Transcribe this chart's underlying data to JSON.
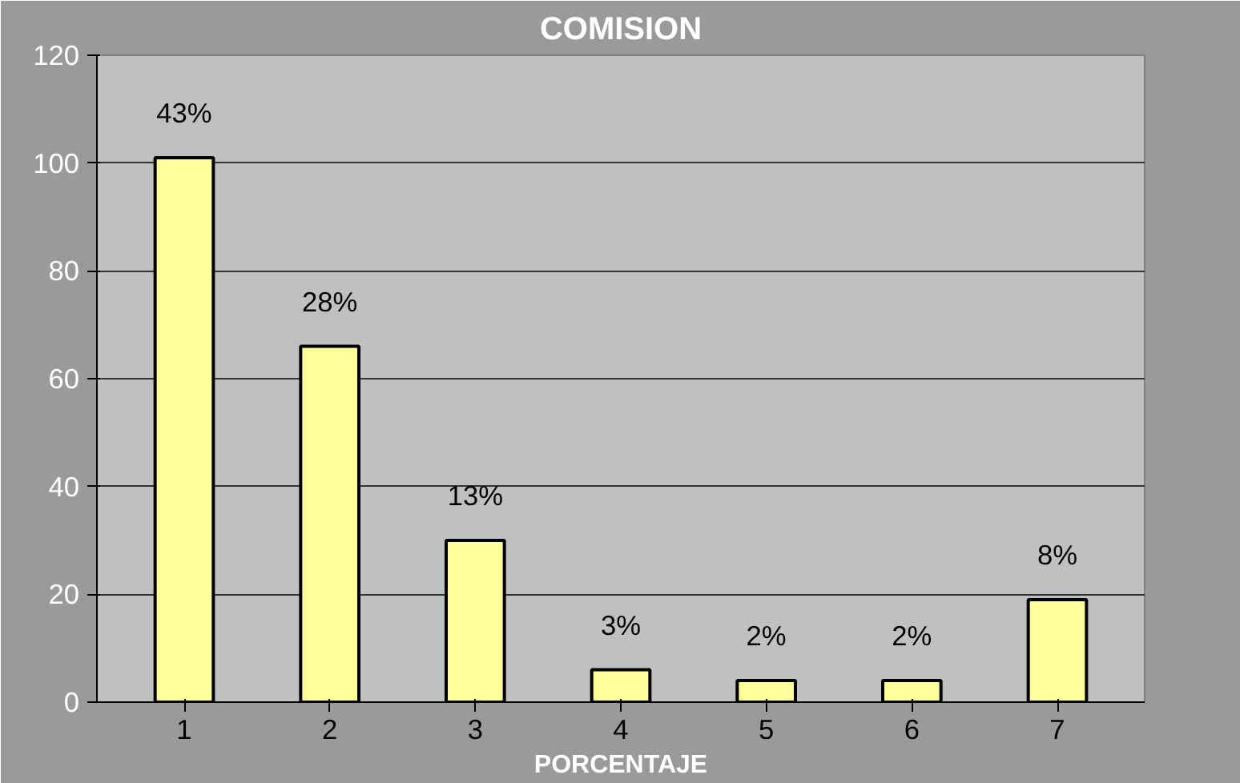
{
  "chart_data": {
    "type": "bar",
    "title": "COMISION",
    "xlabel": "PORCENTAJE",
    "categories": [
      "1",
      "2",
      "3",
      "4",
      "5",
      "6",
      "7"
    ],
    "values": [
      101,
      66,
      30,
      6,
      4,
      4,
      19
    ],
    "annotations": [
      {
        "text": "43%",
        "x": "1",
        "y": 101
      },
      {
        "text": "28%",
        "x": "2",
        "y": 66
      },
      {
        "text": "13%",
        "x": "3",
        "y": 30
      },
      {
        "text": "3%",
        "x": "4",
        "y": 6
      },
      {
        "text": "2%",
        "x": "5",
        "y": 4
      },
      {
        "text": "2%",
        "x": "6",
        "y": 4
      },
      {
        "text": "8%",
        "x": "7",
        "y": 19
      }
    ],
    "color": "#ffff99",
    "ylim": [
      0,
      120
    ],
    "yticks": [
      0,
      20,
      40,
      60,
      80,
      100,
      120
    ],
    "grid": "y"
  }
}
